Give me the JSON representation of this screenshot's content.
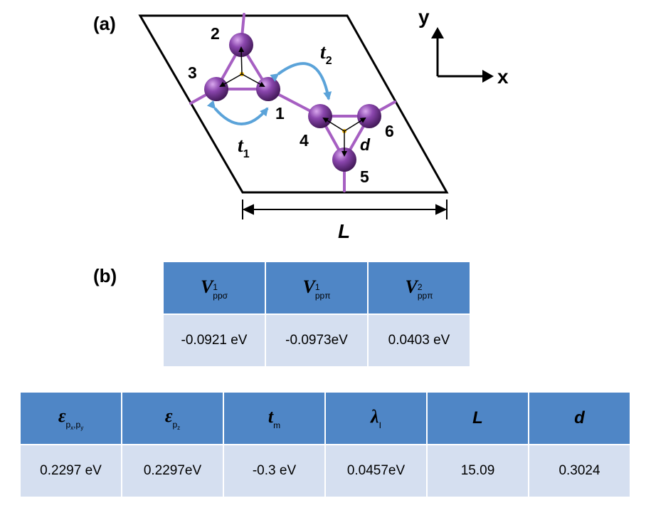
{
  "panel_a": {
    "label": "(a)",
    "axis_y": "y",
    "axis_x": "x",
    "site_labels": [
      "1",
      "2",
      "3",
      "4",
      "5",
      "6"
    ],
    "hopping_t1": "t",
    "hopping_t1_sub": "1",
    "hopping_t2": "t",
    "hopping_t2_sub": "2",
    "distance_label": "d",
    "length_label": "L",
    "colors": {
      "atom": "#7d3f9a",
      "bond": "#a65fc2",
      "arrow": "#5ba3d9",
      "center": "#f0b400"
    }
  },
  "panel_b": {
    "label": "(b)",
    "slater_koster": {
      "headers": [
        {
          "base": "V",
          "sup": "1",
          "sub": "ppσ"
        },
        {
          "base": "V",
          "sup": "1",
          "sub": "ppπ"
        },
        {
          "base": "V",
          "sup": "2",
          "sub": "ppπ"
        }
      ],
      "values": [
        "-0.0921 eV",
        "-0.0973eV",
        "0.0403 eV"
      ]
    },
    "onsite": {
      "headers": [
        {
          "base": "ε",
          "sub": "p",
          "sub2": "x",
          "sep": ",p",
          "sub3": "y"
        },
        {
          "base": "ε",
          "sub": "p",
          "sub2": "z"
        },
        {
          "base": "t",
          "sub": "m"
        },
        {
          "base": "λ",
          "sub": "I"
        },
        {
          "base": "L"
        },
        {
          "base": "d"
        }
      ],
      "values": [
        "0.2297 eV",
        "0.2297eV",
        "-0.3 eV",
        "0.0457eV",
        "15.09",
        "0.3024"
      ]
    }
  }
}
